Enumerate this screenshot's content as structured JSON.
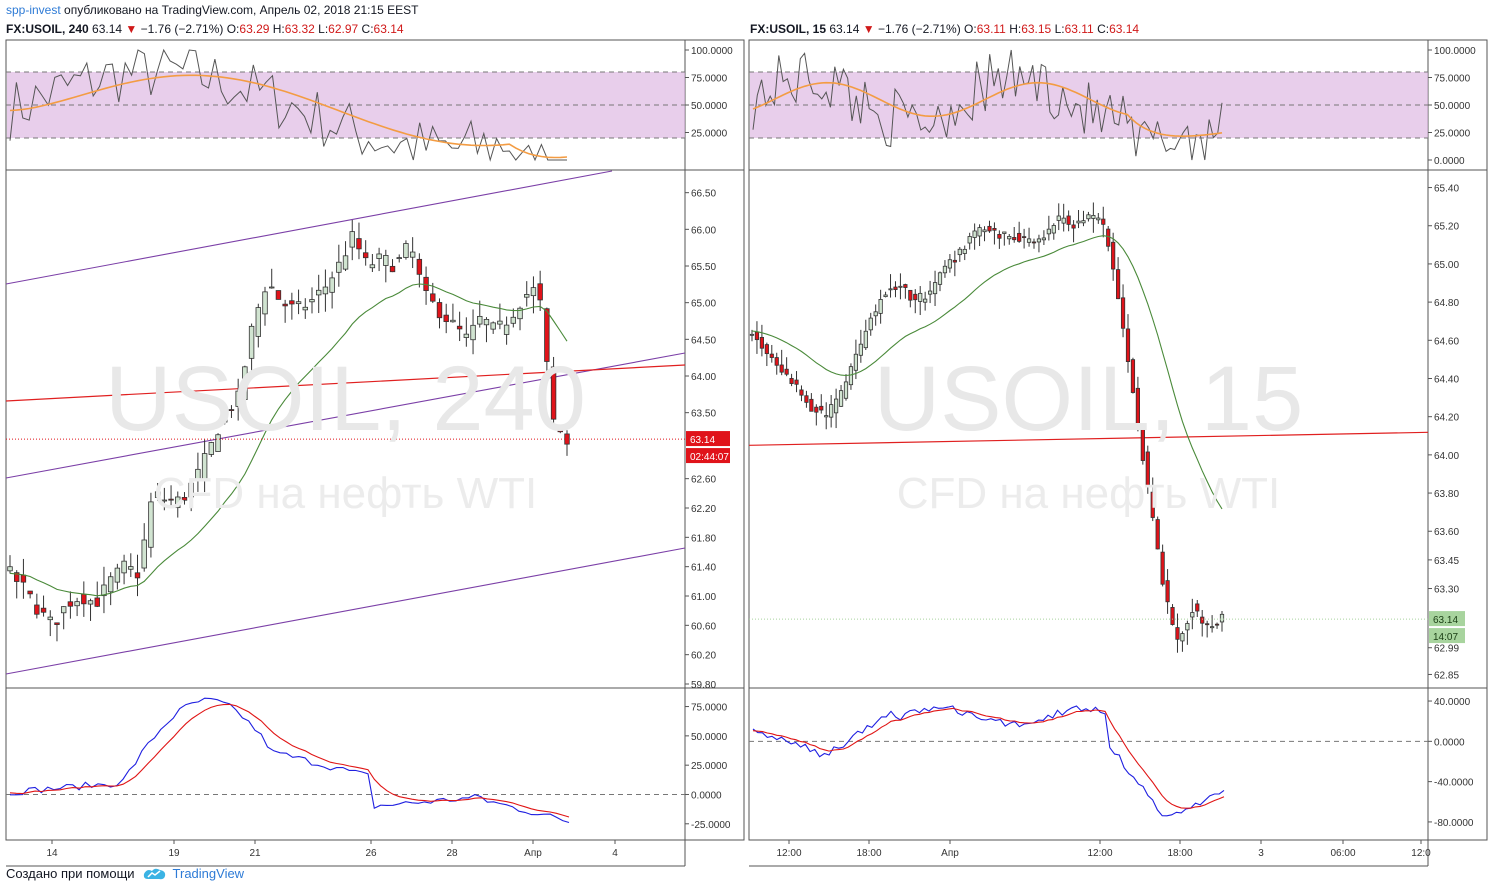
{
  "header": {
    "author": "spp-invest",
    "published": "опубликовано на TradingView.com, Апрель 02, 2018 21:15 EEST"
  },
  "left": {
    "symbol": "FX:USOIL, 240",
    "price": "63.14",
    "change": "−1.76 (−2.71%)",
    "o_label": "O:",
    "o": "63.29",
    "h_label": "H:",
    "h": "63.32",
    "l_label": "L:",
    "l": "62.97",
    "c_label": "C:",
    "c": "63.14",
    "watermark": "USOIL, 240",
    "watermark_sub": "CFD на нефть WTI",
    "price_tag": "63.14",
    "time_tag": "02:44:07",
    "x_labels": [
      "14",
      "19",
      "21",
      "26",
      "28",
      "Апр",
      "4"
    ],
    "price_axis": [
      "66.50",
      "66.00",
      "65.50",
      "65.00",
      "64.50",
      "64.00",
      "63.50",
      "62.60",
      "62.20",
      "61.80",
      "61.40",
      "61.00",
      "60.60",
      "60.20",
      "59.80"
    ],
    "rsi_axis": [
      "100.0000",
      "75.0000",
      "50.0000",
      "25.0000"
    ],
    "osc_axis": [
      "75.0000",
      "50.0000",
      "25.0000",
      "0.0000",
      "-25.0000"
    ]
  },
  "right": {
    "symbol": "FX:USOIL, 15",
    "price": "63.14",
    "change": "−1.76 (−2.71%)",
    "o_label": "O:",
    "o": "63.11",
    "h_label": "H:",
    "h": "63.15",
    "l_label": "L:",
    "l": "63.11",
    "c_label": "C:",
    "c": "63.14",
    "watermark": "USOIL, 15",
    "watermark_sub": "CFD на нефть WTI",
    "price_tag": "63.14",
    "time_tag": "14:07",
    "x_labels": [
      "12:00",
      "18:00",
      "Апр",
      "12:00",
      "18:00",
      "3",
      "06:00",
      "12:0"
    ],
    "price_axis": [
      "65.40",
      "65.20",
      "65.00",
      "64.80",
      "64.60",
      "64.40",
      "64.20",
      "64.00",
      "63.80",
      "63.60",
      "63.45",
      "63.30",
      "62.99",
      "62.85"
    ],
    "rsi_axis": [
      "100.0000",
      "75.0000",
      "50.0000",
      "25.0000",
      "0.0000"
    ],
    "osc_axis": [
      "40.0000",
      "0.0000",
      "-40.0000",
      "-80.0000"
    ]
  },
  "colors": {
    "up": "#d1e4d1",
    "down": "#e0131a",
    "ma": "#4a8a3a",
    "rsi": "#555555",
    "rsi_ma": "#f39c43",
    "band": "#dcb3e0",
    "channel": "#7b3fa7",
    "hline": "#e02020",
    "stoch_k": "#1f1fe0",
    "stoch_d": "#e01515"
  },
  "footer": {
    "made_with": "Создано при помощи",
    "brand": "TradingView"
  },
  "chart_data": [
    {
      "type": "candlestick",
      "title": "FX:USOIL, 240",
      "x": [
        "14",
        "19",
        "21",
        "26",
        "28",
        "Апр",
        "4"
      ],
      "close_path": [
        61.3,
        61.1,
        60.8,
        60.6,
        60.9,
        61.0,
        60.9,
        61.2,
        61.4,
        61.3,
        62.4,
        62.3,
        62.3,
        62.6,
        63.0,
        63.5,
        63.7,
        64.7,
        65.3,
        65.0,
        64.9,
        65.0,
        65.2,
        65.5,
        65.9,
        65.5,
        65.6,
        65.5,
        65.8,
        65.1,
        64.9,
        64.7,
        64.5,
        64.8,
        64.6,
        64.8,
        65.1,
        65.2,
        63.4,
        63.1
      ],
      "ylim": [
        59.8,
        66.7
      ],
      "horizontal_level": 64.0,
      "last_price": 63.14
    },
    {
      "type": "candlestick",
      "title": "FX:USOIL, 15",
      "x": [
        "12:00",
        "18:00",
        "Апр",
        "12:00",
        "18:00",
        "3",
        "06:00",
        "12:0"
      ],
      "close_path": [
        64.65,
        64.55,
        64.45,
        64.35,
        64.25,
        64.2,
        64.3,
        64.5,
        64.7,
        64.85,
        64.9,
        64.8,
        64.85,
        64.95,
        65.05,
        65.15,
        65.2,
        65.15,
        65.15,
        65.1,
        65.15,
        65.25,
        65.2,
        65.25,
        65.2,
        64.8,
        64.3,
        63.8,
        63.3,
        63.0,
        63.2,
        63.1,
        63.14
      ],
      "ylim": [
        62.8,
        65.45
      ],
      "horizontal_level": 64.05,
      "last_price": 63.14
    }
  ]
}
